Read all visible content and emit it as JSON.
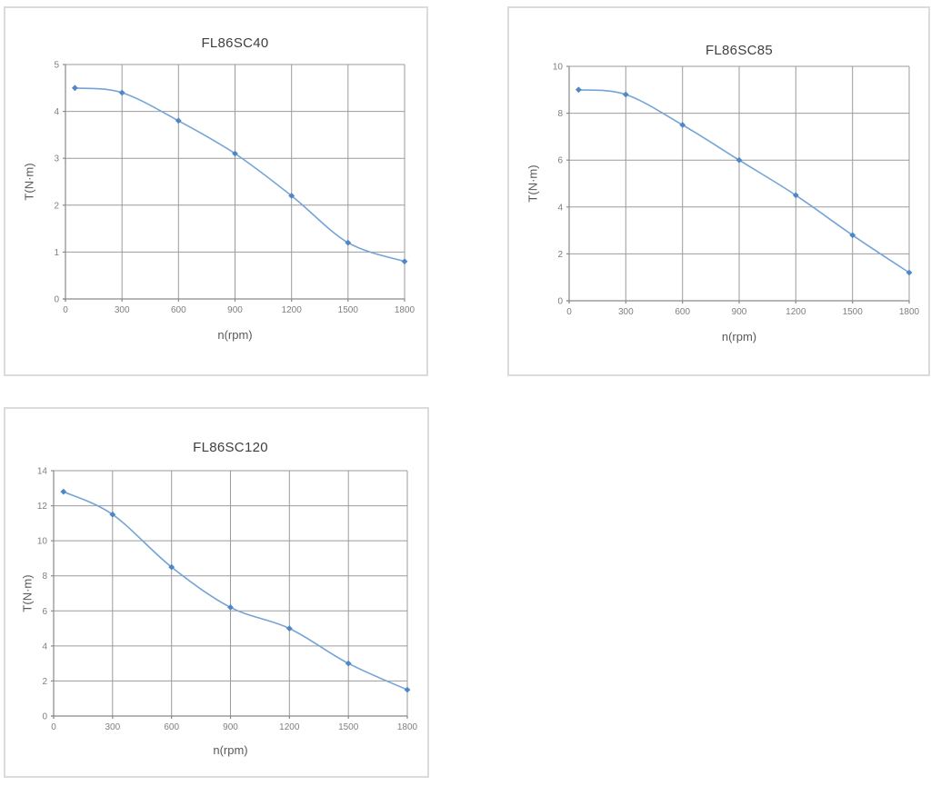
{
  "colors": {
    "background": "#FFFFFF",
    "panel_border": "#DBDBDB",
    "series_line": "#74A4D6",
    "series_marker": "#4E86C6",
    "grid": "#9B9B9B",
    "axis": "#8A8A8A",
    "tick_label": "#7F7F7F",
    "axis_label": "#595959",
    "title": "#3F3F3F"
  },
  "chart_data": [
    {
      "type": "line",
      "title": "FL86SC40",
      "xlabel": "n(rpm)",
      "ylabel": "T(N·m)",
      "x": [
        50,
        300,
        600,
        900,
        1200,
        1500,
        1800
      ],
      "y": [
        4.5,
        4.4,
        3.8,
        3.1,
        2.2,
        1.2,
        0.8
      ],
      "xlim": [
        0,
        1800
      ],
      "ylim": [
        0,
        5
      ],
      "xticks": [
        0,
        300,
        600,
        900,
        1200,
        1500,
        1800
      ],
      "yticks": [
        0,
        1,
        2,
        3,
        4,
        5
      ],
      "grid": true,
      "legend": "none",
      "line_style": "smooth",
      "marker": "diamond"
    },
    {
      "type": "line",
      "title": "FL86SC85",
      "xlabel": "n(rpm)",
      "ylabel": "T(N·m)",
      "x": [
        50,
        300,
        600,
        900,
        1200,
        1500,
        1800
      ],
      "y": [
        9.0,
        8.8,
        7.5,
        6.0,
        4.5,
        2.8,
        1.2
      ],
      "xlim": [
        0,
        1800
      ],
      "ylim": [
        0,
        10
      ],
      "xticks": [
        0,
        300,
        600,
        900,
        1200,
        1500,
        1800
      ],
      "yticks": [
        0,
        2,
        4,
        6,
        8,
        10
      ],
      "grid": true,
      "legend": "none",
      "line_style": "smooth",
      "marker": "diamond"
    },
    {
      "type": "line",
      "title": "FL86SC120",
      "xlabel": "n(rpm)",
      "ylabel": "T(N·m)",
      "x": [
        50,
        300,
        600,
        900,
        1200,
        1500,
        1800
      ],
      "y": [
        12.8,
        11.5,
        8.5,
        6.2,
        5.0,
        3.0,
        1.5
      ],
      "xlim": [
        0,
        1800
      ],
      "ylim": [
        0,
        14
      ],
      "xticks": [
        0,
        300,
        600,
        900,
        1200,
        1500,
        1800
      ],
      "yticks": [
        0,
        2,
        4,
        6,
        8,
        10,
        12,
        14
      ],
      "grid": true,
      "legend": "none",
      "line_style": "smooth",
      "marker": "diamond"
    }
  ]
}
